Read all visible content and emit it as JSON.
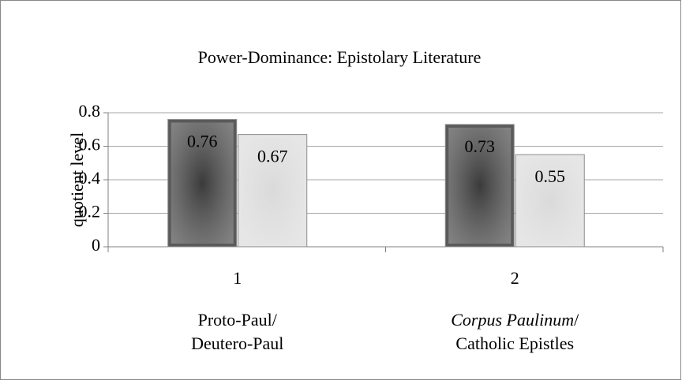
{
  "chart_data": {
    "type": "bar",
    "title": "Power-Dominance: Epistolary Literature",
    "y_label": "quotient level",
    "categories": [
      "1",
      "2"
    ],
    "category_descriptions": [
      [
        [
          {
            "text": "Proto-Paul/"
          }
        ],
        [
          {
            "text": "Deutero-Paul"
          }
        ]
      ],
      [
        [
          {
            "text": "Corpus Paulinum",
            "italic": true
          },
          {
            "text": "/"
          }
        ],
        [
          {
            "text": "Catholic Epistles"
          }
        ]
      ]
    ],
    "series": [
      {
        "color": "#5a5a5a",
        "values": [
          0.76,
          0.73
        ]
      },
      {
        "color": "#e6e6e6",
        "values": [
          0.67,
          0.55
        ]
      }
    ],
    "ylim": [
      0,
      0.8
    ],
    "yticks": [
      0,
      0.2,
      0.4,
      0.6,
      0.8
    ],
    "grid": true
  }
}
